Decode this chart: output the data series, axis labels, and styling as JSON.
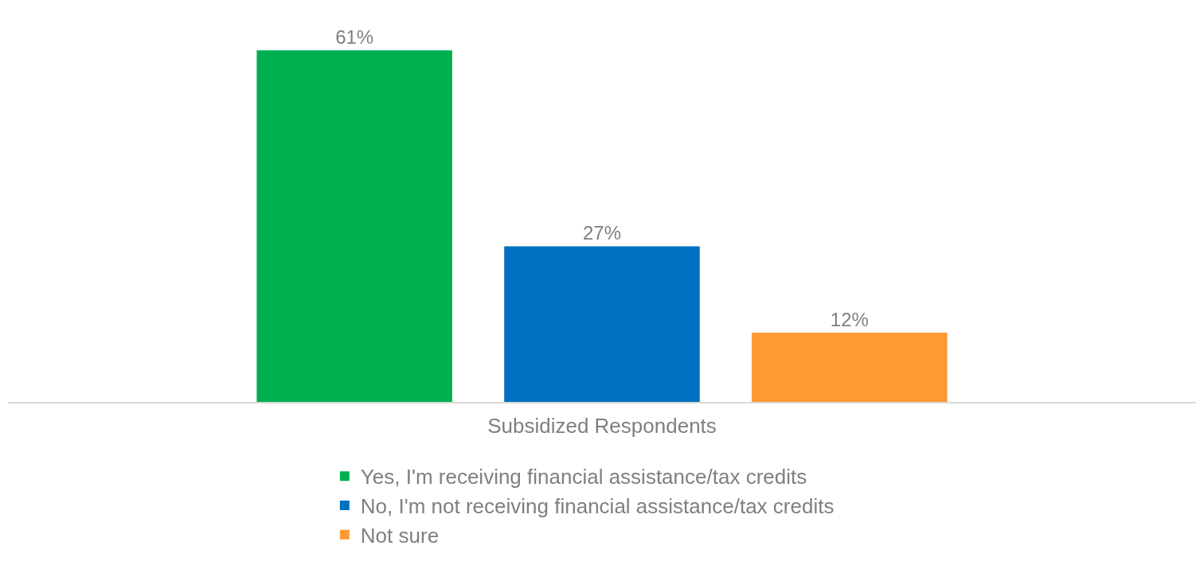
{
  "chart_data": {
    "type": "bar",
    "xlabel": "Subsidized Respondents",
    "categories": [
      null
    ],
    "series": [
      {
        "name": "Yes, I'm receiving financial assistance/tax credits",
        "color": "#00b050",
        "values": [
          61
        ],
        "value_labels": [
          "61%"
        ]
      },
      {
        "name": "No, I'm not receiving financial assistance/tax credits",
        "color": "#0070c0",
        "values": [
          27
        ],
        "value_labels": [
          "27%"
        ]
      },
      {
        "name": "Not sure",
        "color": "#ff9933",
        "values": [
          12
        ],
        "value_labels": [
          "12%"
        ]
      }
    ],
    "legend": "bottom"
  }
}
